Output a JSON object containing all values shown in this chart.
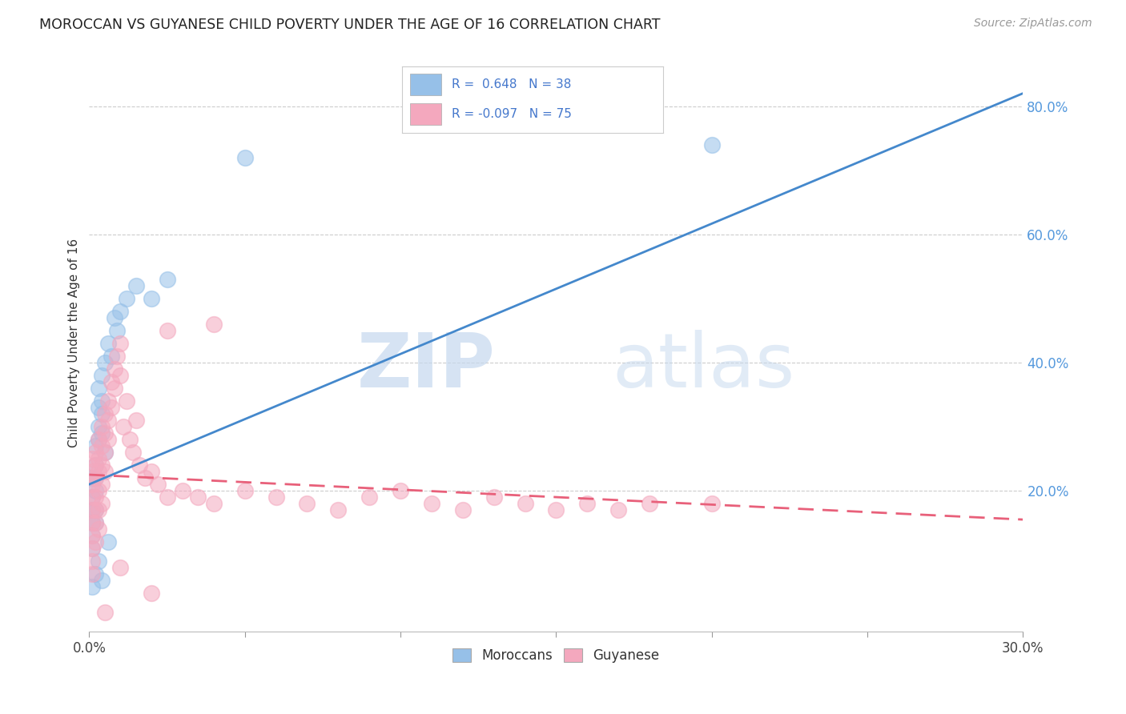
{
  "title": "MOROCCAN VS GUYANESE CHILD POVERTY UNDER THE AGE OF 16 CORRELATION CHART",
  "source": "Source: ZipAtlas.com",
  "ylabel": "Child Poverty Under the Age of 16",
  "watermark_zip": "ZIP",
  "watermark_atlas": "atlas",
  "xlim": [
    0.0,
    0.3
  ],
  "ylim": [
    -0.02,
    0.88
  ],
  "yticks": [
    0.2,
    0.4,
    0.6,
    0.8
  ],
  "ytick_labels": [
    "20.0%",
    "40.0%",
    "60.0%",
    "80.0%"
  ],
  "xtick_positions": [
    0.0,
    0.05,
    0.1,
    0.15,
    0.2,
    0.25,
    0.3
  ],
  "legend_r_moroccan": "0.648",
  "legend_n_moroccan": "38",
  "legend_r_guyanese": "-0.097",
  "legend_n_guyanese": "75",
  "moroccan_color": "#96c0e8",
  "guyanese_color": "#f4a8be",
  "moroccan_line_color": "#4488cc",
  "guyanese_line_color": "#e8607a",
  "moroccan_points": [
    [
      0.001,
      0.22
    ],
    [
      0.001,
      0.19
    ],
    [
      0.001,
      0.17
    ],
    [
      0.001,
      0.15
    ],
    [
      0.001,
      0.13
    ],
    [
      0.001,
      0.11
    ],
    [
      0.002,
      0.24
    ],
    [
      0.002,
      0.22
    ],
    [
      0.002,
      0.2
    ],
    [
      0.002,
      0.17
    ],
    [
      0.002,
      0.15
    ],
    [
      0.002,
      0.27
    ],
    [
      0.003,
      0.3
    ],
    [
      0.003,
      0.28
    ],
    [
      0.003,
      0.33
    ],
    [
      0.003,
      0.36
    ],
    [
      0.004,
      0.32
    ],
    [
      0.004,
      0.29
    ],
    [
      0.004,
      0.38
    ],
    [
      0.004,
      0.34
    ],
    [
      0.005,
      0.4
    ],
    [
      0.005,
      0.26
    ],
    [
      0.006,
      0.43
    ],
    [
      0.007,
      0.41
    ],
    [
      0.008,
      0.47
    ],
    [
      0.009,
      0.45
    ],
    [
      0.01,
      0.48
    ],
    [
      0.012,
      0.5
    ],
    [
      0.015,
      0.52
    ],
    [
      0.02,
      0.5
    ],
    [
      0.025,
      0.53
    ],
    [
      0.003,
      0.09
    ],
    [
      0.002,
      0.07
    ],
    [
      0.001,
      0.05
    ],
    [
      0.004,
      0.06
    ],
    [
      0.006,
      0.12
    ],
    [
      0.05,
      0.72
    ],
    [
      0.2,
      0.74
    ]
  ],
  "guyanese_points": [
    [
      0.001,
      0.25
    ],
    [
      0.001,
      0.23
    ],
    [
      0.001,
      0.21
    ],
    [
      0.001,
      0.19
    ],
    [
      0.001,
      0.17
    ],
    [
      0.001,
      0.15
    ],
    [
      0.001,
      0.13
    ],
    [
      0.001,
      0.11
    ],
    [
      0.001,
      0.09
    ],
    [
      0.001,
      0.07
    ],
    [
      0.002,
      0.26
    ],
    [
      0.002,
      0.24
    ],
    [
      0.002,
      0.22
    ],
    [
      0.002,
      0.19
    ],
    [
      0.002,
      0.17
    ],
    [
      0.002,
      0.15
    ],
    [
      0.002,
      0.12
    ],
    [
      0.003,
      0.28
    ],
    [
      0.003,
      0.25
    ],
    [
      0.003,
      0.23
    ],
    [
      0.003,
      0.2
    ],
    [
      0.003,
      0.17
    ],
    [
      0.003,
      0.14
    ],
    [
      0.004,
      0.3
    ],
    [
      0.004,
      0.27
    ],
    [
      0.004,
      0.24
    ],
    [
      0.004,
      0.21
    ],
    [
      0.004,
      0.18
    ],
    [
      0.005,
      0.32
    ],
    [
      0.005,
      0.29
    ],
    [
      0.005,
      0.26
    ],
    [
      0.005,
      0.23
    ],
    [
      0.006,
      0.34
    ],
    [
      0.006,
      0.31
    ],
    [
      0.006,
      0.28
    ],
    [
      0.007,
      0.37
    ],
    [
      0.007,
      0.33
    ],
    [
      0.008,
      0.39
    ],
    [
      0.008,
      0.36
    ],
    [
      0.009,
      0.41
    ],
    [
      0.01,
      0.43
    ],
    [
      0.01,
      0.38
    ],
    [
      0.011,
      0.3
    ],
    [
      0.012,
      0.34
    ],
    [
      0.013,
      0.28
    ],
    [
      0.014,
      0.26
    ],
    [
      0.015,
      0.31
    ],
    [
      0.016,
      0.24
    ],
    [
      0.018,
      0.22
    ],
    [
      0.02,
      0.23
    ],
    [
      0.022,
      0.21
    ],
    [
      0.025,
      0.19
    ],
    [
      0.03,
      0.2
    ],
    [
      0.035,
      0.19
    ],
    [
      0.04,
      0.18
    ],
    [
      0.05,
      0.2
    ],
    [
      0.06,
      0.19
    ],
    [
      0.07,
      0.18
    ],
    [
      0.08,
      0.17
    ],
    [
      0.09,
      0.19
    ],
    [
      0.1,
      0.2
    ],
    [
      0.11,
      0.18
    ],
    [
      0.12,
      0.17
    ],
    [
      0.13,
      0.19
    ],
    [
      0.14,
      0.18
    ],
    [
      0.15,
      0.17
    ],
    [
      0.16,
      0.18
    ],
    [
      0.17,
      0.17
    ],
    [
      0.18,
      0.18
    ],
    [
      0.02,
      0.04
    ],
    [
      0.005,
      0.01
    ],
    [
      0.01,
      0.08
    ],
    [
      0.04,
      0.46
    ],
    [
      0.025,
      0.45
    ],
    [
      0.2,
      0.18
    ]
  ],
  "moroccan_line_x": [
    0.0,
    0.3
  ],
  "moroccan_line_y": [
    0.21,
    0.82
  ],
  "guyanese_line_x": [
    0.0,
    0.3
  ],
  "guyanese_line_y": [
    0.225,
    0.155
  ]
}
